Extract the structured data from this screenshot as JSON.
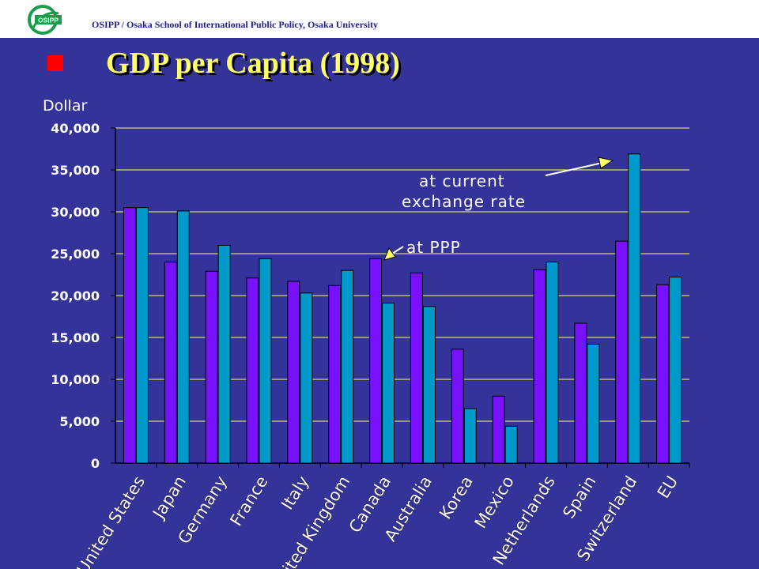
{
  "header": {
    "logo_text": "OSIPP",
    "institution": "OSIPP / Osaka School of International Public Policy, Osaka University"
  },
  "slide": {
    "title": "GDP per Capita (1998)"
  },
  "colors": {
    "background": "#333399",
    "ppp_bar": "#7711ff",
    "exchange_bar": "#0099cc",
    "axis_text": "#ffffff",
    "gridline": "#ffff66",
    "title": "#ffff66",
    "bullet": "#ff0000"
  },
  "chart_data": {
    "type": "bar",
    "ylabel": "Dollar",
    "ylim": [
      0,
      40000
    ],
    "yticks": [
      "0",
      "5,000",
      "10,000",
      "15,000",
      "20,000",
      "25,000",
      "30,000",
      "35,000",
      "40,000"
    ],
    "grid": true,
    "categories": [
      "United States",
      "Japan",
      "Germany",
      "France",
      "Italy",
      "United Kingdom",
      "Canada",
      "Australia",
      "Korea",
      "Mexico",
      "Netherlands",
      "Spain",
      "Switzerland",
      "EU"
    ],
    "series": [
      {
        "name": "at PPP",
        "values": [
          30500,
          24000,
          22900,
          22100,
          21700,
          21200,
          24400,
          22700,
          13600,
          8000,
          23100,
          16700,
          26500,
          21300
        ]
      },
      {
        "name": "at current exchange rate",
        "values": [
          30500,
          30100,
          26000,
          24400,
          20300,
          23000,
          19100,
          18700,
          6500,
          4400,
          24000,
          14200,
          36900,
          22200
        ]
      }
    ],
    "annotations": [
      "at current exchange rate",
      "at PPP"
    ]
  }
}
